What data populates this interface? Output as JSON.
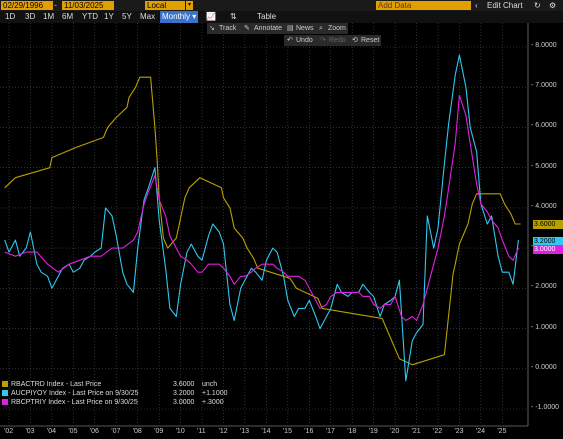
{
  "toolbar": {
    "start_date": "02/29/1996",
    "end_date": "11/03/2025",
    "currency": "Local CCY",
    "periods": [
      "1D",
      "3D",
      "1M",
      "6M",
      "YTD",
      "1Y",
      "5Y",
      "Max"
    ],
    "frequency": "Monthly",
    "table_label": "Table",
    "add_data_placeholder": "Add Data",
    "edit_chart_label": "Edit Chart"
  },
  "controls": {
    "track": "Track",
    "annotate": "Annotate",
    "news": "News",
    "zoom": "Zoom",
    "undo": "Undo",
    "redo": "Redo",
    "reset": "Reset"
  },
  "colors": {
    "rba": "#b8a000",
    "auc": "#2ec8f0",
    "rbc": "#e020e0",
    "grid": "#4a5058"
  },
  "chart_data": {
    "type": "line",
    "ylim": [
      -1,
      8.5
    ],
    "yticks": [
      "8.0000",
      "7.0000",
      "6.0000",
      "5.0000",
      "4.0000",
      "3.0000",
      "2.0000",
      "1.0000",
      "0.0000",
      "-1.0000"
    ],
    "x_tick_labels": [
      "'02",
      "'03",
      "'04",
      "'05",
      "'06",
      "'07",
      "'08",
      "'09",
      "'10",
      "'11",
      "'12",
      "'13",
      "'14",
      "'15",
      "'16",
      "'17",
      "'18",
      "'19",
      "'20",
      "'21",
      "'22",
      "'23",
      "'24",
      "'25"
    ],
    "series": [
      {
        "name": "RBACTRD Index - Last Price",
        "key": "rba",
        "last_value": "3.6000",
        "change": "unch",
        "points": [
          [
            2001.8,
            4.5
          ],
          [
            2002.3,
            4.75
          ],
          [
            2003.9,
            5.0
          ],
          [
            2004.0,
            5.25
          ],
          [
            2005.1,
            5.5
          ],
          [
            2006.4,
            5.75
          ],
          [
            2006.6,
            6.0
          ],
          [
            2007.0,
            6.25
          ],
          [
            2007.5,
            6.5
          ],
          [
            2007.6,
            6.75
          ],
          [
            2007.9,
            7.0
          ],
          [
            2008.1,
            7.25
          ],
          [
            2008.6,
            7.25
          ],
          [
            2008.8,
            6.0
          ],
          [
            2008.9,
            5.25
          ],
          [
            2009.0,
            4.25
          ],
          [
            2009.2,
            3.25
          ],
          [
            2009.4,
            3.0
          ],
          [
            2009.8,
            3.25
          ],
          [
            2009.9,
            3.5
          ],
          [
            2010.0,
            3.75
          ],
          [
            2010.2,
            4.25
          ],
          [
            2010.4,
            4.5
          ],
          [
            2010.9,
            4.75
          ],
          [
            2011.9,
            4.5
          ],
          [
            2012.0,
            4.25
          ],
          [
            2012.3,
            4.0
          ],
          [
            2012.4,
            3.75
          ],
          [
            2012.5,
            3.5
          ],
          [
            2012.9,
            3.25
          ],
          [
            2013.1,
            3.0
          ],
          [
            2013.4,
            2.75
          ],
          [
            2013.6,
            2.5
          ],
          [
            2015.1,
            2.25
          ],
          [
            2015.4,
            2.0
          ],
          [
            2016.4,
            1.75
          ],
          [
            2016.6,
            1.5
          ],
          [
            2019.4,
            1.25
          ],
          [
            2019.6,
            1.0
          ],
          [
            2019.8,
            0.75
          ],
          [
            2020.2,
            0.25
          ],
          [
            2020.8,
            0.1
          ],
          [
            2022.3,
            0.35
          ],
          [
            2022.4,
            0.85
          ],
          [
            2022.5,
            1.35
          ],
          [
            2022.6,
            1.85
          ],
          [
            2022.7,
            2.35
          ],
          [
            2022.8,
            2.6
          ],
          [
            2022.9,
            2.85
          ],
          [
            2023.0,
            3.1
          ],
          [
            2023.2,
            3.35
          ],
          [
            2023.4,
            3.6
          ],
          [
            2023.6,
            4.1
          ],
          [
            2023.8,
            4.35
          ],
          [
            2024.9,
            4.35
          ],
          [
            2025.1,
            4.1
          ],
          [
            2025.4,
            3.85
          ],
          [
            2025.6,
            3.6
          ],
          [
            2025.85,
            3.6
          ]
        ]
      },
      {
        "name": "AUCPIYOY Index - Last Price on 9/30/25",
        "key": "auc",
        "last_value": "3.2000",
        "change": "+1.1000",
        "points": [
          [
            2001.8,
            3.2
          ],
          [
            2002.0,
            2.9
          ],
          [
            2002.3,
            3.2
          ],
          [
            2002.5,
            2.8
          ],
          [
            2002.8,
            3.0
          ],
          [
            2003.0,
            3.4
          ],
          [
            2003.3,
            2.6
          ],
          [
            2003.5,
            2.4
          ],
          [
            2003.8,
            2.3
          ],
          [
            2004.0,
            2.0
          ],
          [
            2004.3,
            2.3
          ],
          [
            2004.5,
            2.5
          ],
          [
            2004.8,
            2.6
          ],
          [
            2005.0,
            2.4
          ],
          [
            2005.3,
            2.5
          ],
          [
            2005.5,
            2.7
          ],
          [
            2005.8,
            2.8
          ],
          [
            2006.0,
            2.9
          ],
          [
            2006.3,
            3.0
          ],
          [
            2006.5,
            4.0
          ],
          [
            2006.8,
            3.8
          ],
          [
            2007.0,
            3.3
          ],
          [
            2007.3,
            2.4
          ],
          [
            2007.5,
            2.1
          ],
          [
            2007.8,
            1.9
          ],
          [
            2008.0,
            3.0
          ],
          [
            2008.3,
            4.2
          ],
          [
            2008.5,
            4.5
          ],
          [
            2008.8,
            5.0
          ],
          [
            2009.0,
            3.7
          ],
          [
            2009.3,
            2.5
          ],
          [
            2009.5,
            1.5
          ],
          [
            2009.8,
            1.3
          ],
          [
            2010.0,
            2.1
          ],
          [
            2010.3,
            2.9
          ],
          [
            2010.5,
            3.1
          ],
          [
            2010.8,
            2.8
          ],
          [
            2011.0,
            2.7
          ],
          [
            2011.3,
            3.3
          ],
          [
            2011.5,
            3.6
          ],
          [
            2011.8,
            3.4
          ],
          [
            2012.0,
            3.1
          ],
          [
            2012.3,
            1.6
          ],
          [
            2012.5,
            1.2
          ],
          [
            2012.8,
            2.0
          ],
          [
            2013.0,
            2.2
          ],
          [
            2013.3,
            2.5
          ],
          [
            2013.5,
            2.4
          ],
          [
            2013.8,
            2.2
          ],
          [
            2014.0,
            2.7
          ],
          [
            2014.3,
            3.0
          ],
          [
            2014.5,
            2.9
          ],
          [
            2014.8,
            2.3
          ],
          [
            2015.0,
            1.7
          ],
          [
            2015.3,
            1.3
          ],
          [
            2015.5,
            1.5
          ],
          [
            2015.8,
            1.5
          ],
          [
            2016.0,
            1.7
          ],
          [
            2016.3,
            1.3
          ],
          [
            2016.5,
            1.0
          ],
          [
            2016.8,
            1.3
          ],
          [
            2017.0,
            1.5
          ],
          [
            2017.3,
            2.1
          ],
          [
            2017.5,
            1.9
          ],
          [
            2017.8,
            1.8
          ],
          [
            2018.0,
            1.9
          ],
          [
            2018.3,
            1.9
          ],
          [
            2018.5,
            2.1
          ],
          [
            2018.8,
            1.9
          ],
          [
            2019.0,
            1.8
          ],
          [
            2019.3,
            1.3
          ],
          [
            2019.5,
            1.6
          ],
          [
            2019.8,
            1.7
          ],
          [
            2020.0,
            1.8
          ],
          [
            2020.2,
            2.2
          ],
          [
            2020.5,
            -0.3
          ],
          [
            2020.8,
            0.7
          ],
          [
            2021.0,
            0.9
          ],
          [
            2021.3,
            1.1
          ],
          [
            2021.5,
            3.8
          ],
          [
            2021.8,
            3.0
          ],
          [
            2022.0,
            3.5
          ],
          [
            2022.3,
            5.1
          ],
          [
            2022.5,
            6.1
          ],
          [
            2022.8,
            7.3
          ],
          [
            2023.0,
            7.8
          ],
          [
            2023.3,
            7.0
          ],
          [
            2023.5,
            6.0
          ],
          [
            2023.8,
            5.4
          ],
          [
            2024.0,
            4.1
          ],
          [
            2024.3,
            3.6
          ],
          [
            2024.5,
            3.8
          ],
          [
            2024.8,
            2.8
          ],
          [
            2025.0,
            2.4
          ],
          [
            2025.3,
            2.4
          ],
          [
            2025.5,
            2.1
          ],
          [
            2025.75,
            3.2
          ]
        ]
      },
      {
        "name": "RBCPTRIY Index - Last Price on 9/30/25",
        "key": "rbc",
        "last_value": "3.0000",
        "change": "+.3000",
        "points": [
          [
            2001.8,
            2.9
          ],
          [
            2002.3,
            2.8
          ],
          [
            2002.8,
            2.9
          ],
          [
            2003.3,
            2.9
          ],
          [
            2003.8,
            2.6
          ],
          [
            2004.3,
            2.4
          ],
          [
            2004.8,
            2.6
          ],
          [
            2005.3,
            2.7
          ],
          [
            2005.8,
            2.8
          ],
          [
            2006.3,
            2.8
          ],
          [
            2006.8,
            3.0
          ],
          [
            2007.3,
            3.0
          ],
          [
            2007.8,
            3.2
          ],
          [
            2008.0,
            3.4
          ],
          [
            2008.3,
            4.1
          ],
          [
            2008.5,
            4.4
          ],
          [
            2008.8,
            4.8
          ],
          [
            2009.0,
            4.2
          ],
          [
            2009.3,
            3.8
          ],
          [
            2009.5,
            3.3
          ],
          [
            2009.8,
            3.0
          ],
          [
            2010.0,
            2.8
          ],
          [
            2010.3,
            2.7
          ],
          [
            2010.5,
            2.6
          ],
          [
            2010.8,
            2.4
          ],
          [
            2011.0,
            2.4
          ],
          [
            2011.3,
            2.6
          ],
          [
            2011.5,
            2.6
          ],
          [
            2011.8,
            2.6
          ],
          [
            2012.0,
            2.5
          ],
          [
            2012.3,
            2.3
          ],
          [
            2012.5,
            2.1
          ],
          [
            2012.8,
            2.3
          ],
          [
            2013.0,
            2.3
          ],
          [
            2013.3,
            2.4
          ],
          [
            2013.5,
            2.5
          ],
          [
            2013.8,
            2.6
          ],
          [
            2014.0,
            2.6
          ],
          [
            2014.3,
            2.6
          ],
          [
            2014.5,
            2.5
          ],
          [
            2014.8,
            2.4
          ],
          [
            2015.0,
            2.3
          ],
          [
            2015.3,
            2.3
          ],
          [
            2015.5,
            2.3
          ],
          [
            2015.8,
            2.2
          ],
          [
            2016.0,
            2.0
          ],
          [
            2016.3,
            1.7
          ],
          [
            2016.5,
            1.5
          ],
          [
            2016.8,
            1.6
          ],
          [
            2017.0,
            1.8
          ],
          [
            2017.3,
            1.9
          ],
          [
            2017.5,
            1.9
          ],
          [
            2017.8,
            1.9
          ],
          [
            2018.0,
            1.9
          ],
          [
            2018.3,
            1.9
          ],
          [
            2018.5,
            1.8
          ],
          [
            2018.8,
            1.8
          ],
          [
            2019.0,
            1.6
          ],
          [
            2019.3,
            1.5
          ],
          [
            2019.5,
            1.6
          ],
          [
            2019.8,
            1.6
          ],
          [
            2020.0,
            1.8
          ],
          [
            2020.3,
            1.3
          ],
          [
            2020.5,
            1.2
          ],
          [
            2020.8,
            1.3
          ],
          [
            2021.0,
            1.2
          ],
          [
            2021.3,
            1.6
          ],
          [
            2021.5,
            2.0
          ],
          [
            2021.8,
            2.6
          ],
          [
            2022.0,
            3.0
          ],
          [
            2022.3,
            3.8
          ],
          [
            2022.5,
            4.5
          ],
          [
            2022.8,
            5.6
          ],
          [
            2023.0,
            6.8
          ],
          [
            2023.3,
            6.3
          ],
          [
            2023.5,
            5.6
          ],
          [
            2023.8,
            4.6
          ],
          [
            2024.0,
            4.1
          ],
          [
            2024.3,
            3.9
          ],
          [
            2024.5,
            3.7
          ],
          [
            2024.8,
            3.5
          ],
          [
            2025.0,
            3.2
          ],
          [
            2025.3,
            2.8
          ],
          [
            2025.5,
            2.7
          ],
          [
            2025.75,
            3.0
          ]
        ]
      }
    ]
  }
}
